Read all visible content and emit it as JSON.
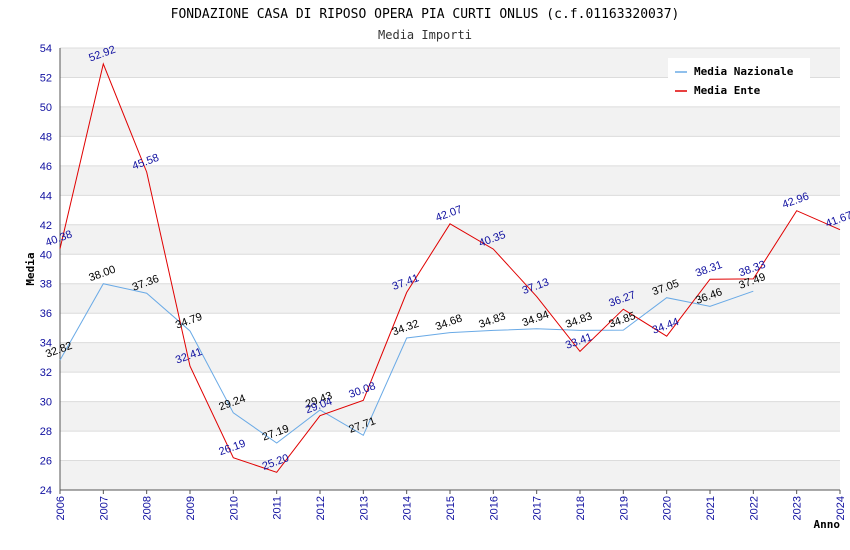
{
  "chart_data": {
    "type": "line",
    "title": "FONDAZIONE CASA DI RIPOSO OPERA PIA CURTI ONLUS (c.f.01163320037)",
    "subtitle": "Media Importi",
    "xlabel": "Anno",
    "ylabel": "Media",
    "ylim": [
      24,
      54
    ],
    "yticks": [
      24,
      26,
      28,
      30,
      32,
      34,
      36,
      38,
      40,
      42,
      44,
      46,
      48,
      50,
      52,
      54
    ],
    "grid": true,
    "legend_position": "top-right",
    "categories": [
      "2006",
      "2007",
      "2008",
      "2009",
      "2010",
      "2011",
      "2012",
      "2013",
      "2014",
      "2015",
      "2016",
      "2017",
      "2018",
      "2019",
      "2020",
      "2021",
      "2022",
      "2023",
      "2024"
    ],
    "series": [
      {
        "name": "Media Nazionale",
        "color": "#6aaae6",
        "values": [
          32.82,
          38.0,
          37.36,
          34.79,
          29.24,
          27.19,
          29.43,
          27.71,
          34.32,
          34.68,
          34.83,
          34.94,
          34.83,
          34.85,
          37.05,
          36.46,
          37.49,
          null,
          null
        ],
        "labels": [
          "32.82",
          "38.00",
          "37.36",
          "34.79",
          "29.24",
          "27.19",
          "29.43",
          "27.71",
          "34.32",
          "34.68",
          "34.83",
          "34.94",
          "34.83",
          "34.85",
          "37.05",
          "36.46",
          "37.49",
          "",
          ""
        ]
      },
      {
        "name": "Media Ente",
        "color": "#e00000",
        "values": [
          40.38,
          52.92,
          45.58,
          32.41,
          26.19,
          25.2,
          29.04,
          30.08,
          37.41,
          42.07,
          40.35,
          37.13,
          33.41,
          36.27,
          34.44,
          38.31,
          38.33,
          42.96,
          41.67
        ],
        "labels": [
          "40.38",
          "52.92",
          "45.58",
          "32.41",
          "26.19",
          "25.20",
          "29.04",
          "30.08",
          "37.41",
          "42.07",
          "40.35",
          "37.13",
          "33.41",
          "36.27",
          "34.44",
          "38.31",
          "38.33",
          "42.96",
          "41.67"
        ]
      }
    ]
  }
}
